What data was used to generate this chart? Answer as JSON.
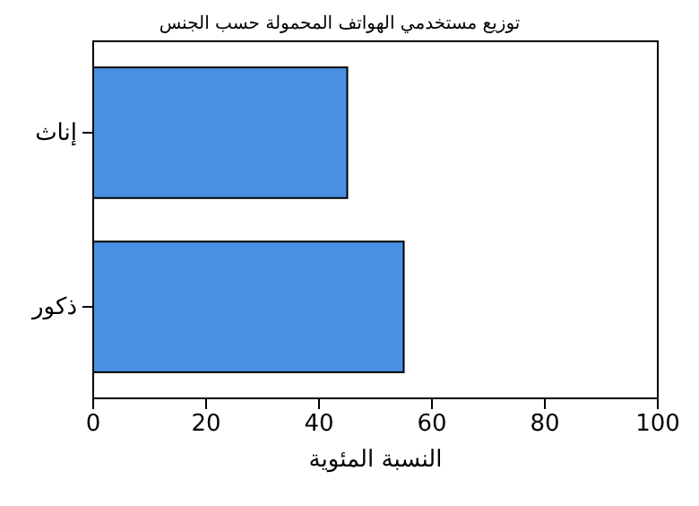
{
  "chart_data": {
    "type": "bar",
    "orientation": "horizontal",
    "title": "توزيع مستخدمي الهواتف المحمولة حسب الجنس",
    "xlabel": "النسبة المئوية",
    "categories": [
      "إناث",
      "ذكور"
    ],
    "values": [
      45,
      55
    ],
    "color": "#4a90e2",
    "xlim": [
      0,
      100
    ],
    "xticks": [
      0,
      20,
      40,
      60,
      80,
      100
    ]
  }
}
